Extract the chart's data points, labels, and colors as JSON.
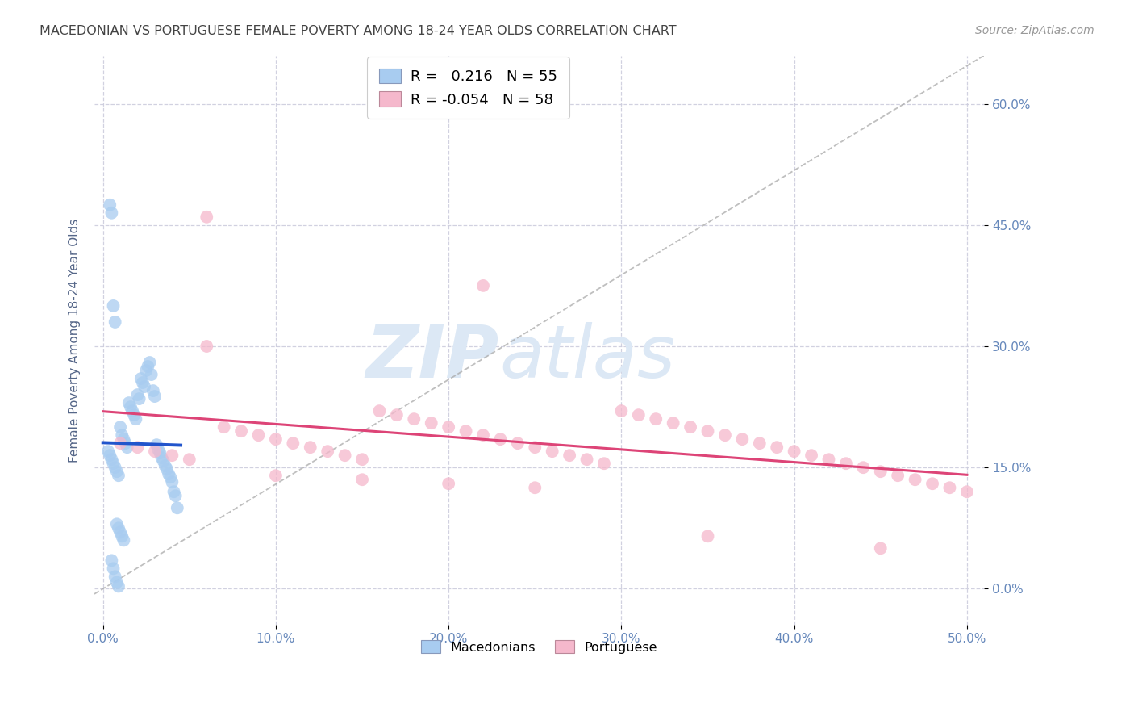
{
  "title": "MACEDONIAN VS PORTUGUESE FEMALE POVERTY AMONG 18-24 YEAR OLDS CORRELATION CHART",
  "source": "Source: ZipAtlas.com",
  "ylabel": "Female Poverty Among 18-24 Year Olds",
  "xlim": [
    -0.5,
    51.0
  ],
  "ylim": [
    -4.5,
    66.0
  ],
  "yticks": [
    0.0,
    15.0,
    30.0,
    45.0,
    60.0
  ],
  "xticks": [
    0.0,
    10.0,
    20.0,
    30.0,
    40.0,
    50.0
  ],
  "macedonian_R": 0.216,
  "macedonian_N": 55,
  "portuguese_R": -0.054,
  "portuguese_N": 58,
  "macedonian_color": "#a8ccf0",
  "portuguese_color": "#f5b8cc",
  "macedonian_trend_color": "#2255cc",
  "portuguese_trend_color": "#dd4477",
  "background_color": "#ffffff",
  "grid_color": "#ccccdd",
  "title_color": "#444444",
  "axis_color": "#6688bb",
  "watermark_color": "#dce8f5",
  "source_color": "#999999",
  "mac_x": [
    0.3,
    0.4,
    0.5,
    0.6,
    0.7,
    0.8,
    0.9,
    1.0,
    1.1,
    1.2,
    1.3,
    1.4,
    1.5,
    1.6,
    1.7,
    1.8,
    1.9,
    2.0,
    2.1,
    2.2,
    2.3,
    2.4,
    2.5,
    2.6,
    2.7,
    2.8,
    2.9,
    3.0,
    3.1,
    3.2,
    3.3,
    3.4,
    3.5,
    3.6,
    3.7,
    3.8,
    3.9,
    4.0,
    4.1,
    4.2,
    4.3,
    0.4,
    0.5,
    0.6,
    0.7,
    0.8,
    0.9,
    1.0,
    1.1,
    1.2,
    0.5,
    0.6,
    0.7,
    0.8,
    0.9
  ],
  "mac_y": [
    17.0,
    16.5,
    16.0,
    15.5,
    15.0,
    14.5,
    14.0,
    20.0,
    19.0,
    18.5,
    18.0,
    17.5,
    23.0,
    22.5,
    22.0,
    21.5,
    21.0,
    24.0,
    23.5,
    26.0,
    25.5,
    25.0,
    27.0,
    27.5,
    28.0,
    26.5,
    24.5,
    23.8,
    17.8,
    17.2,
    16.8,
    16.2,
    15.8,
    15.2,
    14.8,
    14.2,
    13.8,
    13.2,
    12.0,
    11.5,
    10.0,
    47.5,
    46.5,
    35.0,
    33.0,
    8.0,
    7.5,
    7.0,
    6.5,
    6.0,
    3.5,
    2.5,
    1.5,
    0.8,
    0.3
  ],
  "port_x": [
    1.0,
    2.0,
    3.0,
    4.0,
    5.0,
    6.0,
    7.0,
    8.0,
    9.0,
    10.0,
    11.0,
    12.0,
    13.0,
    14.0,
    15.0,
    16.0,
    17.0,
    18.0,
    19.0,
    20.0,
    21.0,
    22.0,
    23.0,
    24.0,
    25.0,
    26.0,
    27.0,
    28.0,
    29.0,
    30.0,
    31.0,
    32.0,
    33.0,
    34.0,
    35.0,
    36.0,
    37.0,
    38.0,
    39.0,
    40.0,
    41.0,
    42.0,
    43.0,
    44.0,
    45.0,
    46.0,
    47.0,
    48.0,
    49.0,
    50.0,
    6.0,
    22.0,
    10.0,
    15.0,
    20.0,
    25.0,
    35.0,
    45.0
  ],
  "port_y": [
    18.0,
    17.5,
    17.0,
    16.5,
    16.0,
    46.0,
    20.0,
    19.5,
    19.0,
    18.5,
    18.0,
    17.5,
    17.0,
    16.5,
    16.0,
    22.0,
    21.5,
    21.0,
    20.5,
    20.0,
    19.5,
    19.0,
    18.5,
    18.0,
    17.5,
    17.0,
    16.5,
    16.0,
    15.5,
    22.0,
    21.5,
    21.0,
    20.5,
    20.0,
    19.5,
    19.0,
    18.5,
    18.0,
    17.5,
    17.0,
    16.5,
    16.0,
    15.5,
    15.0,
    14.5,
    14.0,
    13.5,
    13.0,
    12.5,
    12.0,
    30.0,
    37.5,
    14.0,
    13.5,
    13.0,
    12.5,
    6.5,
    5.0
  ]
}
